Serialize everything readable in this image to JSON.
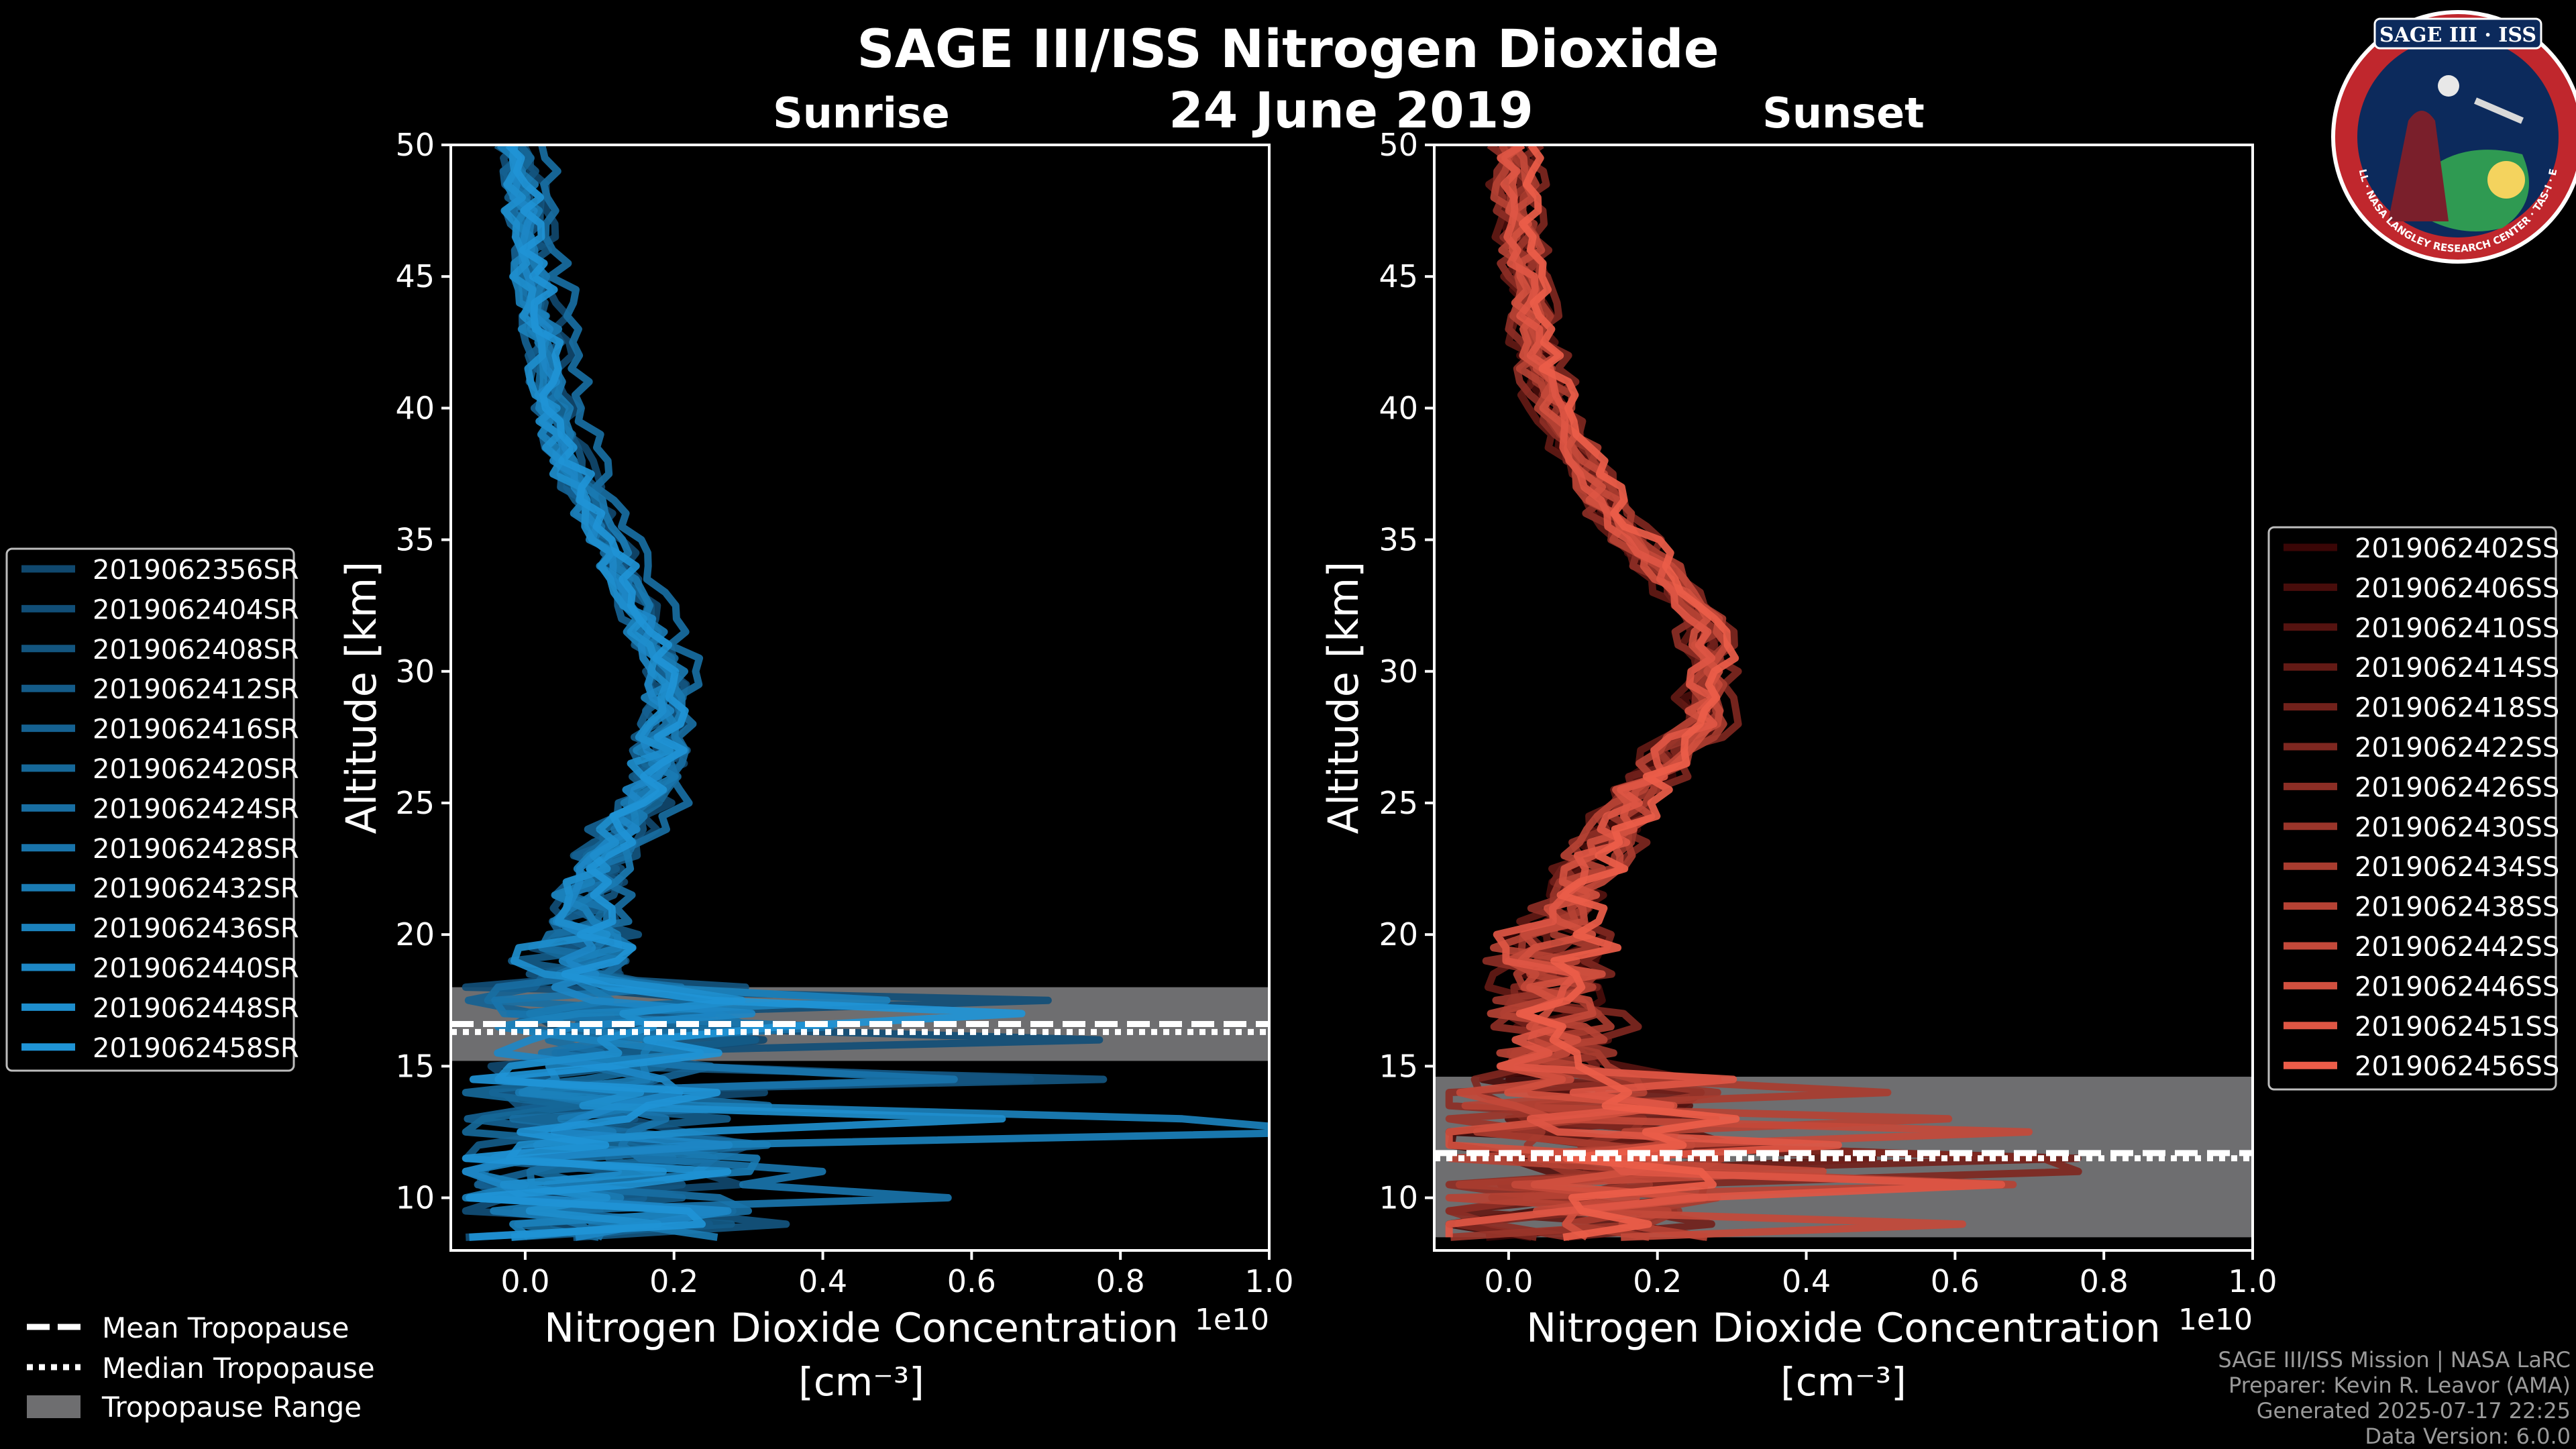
{
  "title": "SAGE III/ISS Nitrogen Dioxide",
  "date": "24 June 2019",
  "logo": {
    "top_text": "SAGE III · ISS",
    "ring_text": "BALL · NASA LANGLEY RESEARCH CENTER · TAS-I · ESA"
  },
  "footer": {
    "lines": [
      "SAGE III/ISS Mission | NASA LaRC",
      "Preparer: Kevin R. Leavor (AMA)",
      "Generated 2025-07-17 22:25",
      "Data Version: 6.0.0"
    ]
  },
  "tropopause_legend": {
    "mean": "Mean Tropopause",
    "median": "Median Tropopause",
    "range": "Tropopause Range"
  },
  "colors": {
    "sunrise": "#1f94d6",
    "sunset": "#ec5d49",
    "tropopause_range": "#6e6e70"
  },
  "chart_data": [
    {
      "type": "line",
      "panel": "Sunrise",
      "title": "Sunrise",
      "xlabel": "Nitrogen Dioxide Concentration",
      "xlabel_units": "[cm⁻³]",
      "ylabel": "Altitude [km]",
      "x_scale_label": "1e10",
      "xlim": [
        -0.1,
        1.0
      ],
      "ylim": [
        8,
        50
      ],
      "x_ticks": [
        "0.0",
        "0.2",
        "0.4",
        "0.6",
        "0.8",
        "1.0"
      ],
      "x_tick_values": [
        0.0,
        0.2,
        0.4,
        0.6,
        0.8,
        1.0
      ],
      "y_ticks": [
        "10",
        "15",
        "20",
        "25",
        "30",
        "35",
        "40",
        "45",
        "50"
      ],
      "y_tick_values": [
        10,
        15,
        20,
        25,
        30,
        35,
        40,
        45,
        50
      ],
      "tropopause": {
        "mean": 16.6,
        "median": 16.3,
        "range": [
          15.2,
          18.0
        ]
      },
      "profile_shape": {
        "altitude": [
          8.5,
          10,
          12,
          14,
          16,
          18,
          20,
          22,
          24,
          26,
          28,
          30,
          32,
          34,
          36,
          38,
          40,
          42,
          44,
          46,
          48,
          50
        ],
        "no2": [
          0.05,
          0.06,
          0.07,
          0.08,
          0.12,
          0.07,
          0.08,
          0.1,
          0.14,
          0.19,
          0.2,
          0.2,
          0.17,
          0.14,
          0.1,
          0.07,
          0.05,
          0.04,
          0.03,
          0.02,
          0.01,
          0.0
        ],
        "note": "approximate common profile (units 1e10 cm^-3); individual events scatter around it"
      },
      "legend_position": "left",
      "series": [
        {
          "name": "2019062356SR"
        },
        {
          "name": "2019062404SR"
        },
        {
          "name": "2019062408SR"
        },
        {
          "name": "2019062412SR"
        },
        {
          "name": "2019062416SR"
        },
        {
          "name": "2019062420SR"
        },
        {
          "name": "2019062424SR"
        },
        {
          "name": "2019062428SR"
        },
        {
          "name": "2019062432SR"
        },
        {
          "name": "2019062436SR"
        },
        {
          "name": "2019062440SR"
        },
        {
          "name": "2019062448SR"
        },
        {
          "name": "2019062458SR"
        }
      ]
    },
    {
      "type": "line",
      "panel": "Sunset",
      "title": "Sunset",
      "xlabel": "Nitrogen Dioxide Concentration",
      "xlabel_units": "[cm⁻³]",
      "ylabel": "Altitude [km]",
      "x_scale_label": "1e10",
      "xlim": [
        -0.1,
        1.0
      ],
      "ylim": [
        8,
        50
      ],
      "x_ticks": [
        "0.0",
        "0.2",
        "0.4",
        "0.6",
        "0.8",
        "1.0"
      ],
      "x_tick_values": [
        0.0,
        0.2,
        0.4,
        0.6,
        0.8,
        1.0
      ],
      "y_ticks": [
        "10",
        "15",
        "20",
        "25",
        "30",
        "35",
        "40",
        "45",
        "50"
      ],
      "y_tick_values": [
        10,
        15,
        20,
        25,
        30,
        35,
        40,
        45,
        50
      ],
      "tropopause": {
        "mean": 11.7,
        "median": 11.5,
        "range": [
          8.5,
          14.6
        ]
      },
      "profile_shape": {
        "altitude": [
          8.5,
          10,
          12,
          14,
          16,
          18,
          20,
          22,
          24,
          26,
          28,
          30,
          32,
          34,
          36,
          38,
          40,
          42,
          44,
          46,
          48,
          50
        ],
        "no2": [
          0.03,
          0.04,
          0.06,
          0.06,
          0.08,
          0.05,
          0.06,
          0.1,
          0.14,
          0.19,
          0.26,
          0.27,
          0.26,
          0.2,
          0.14,
          0.1,
          0.06,
          0.04,
          0.03,
          0.02,
          0.01,
          0.01
        ],
        "note": "approximate common profile (units 1e10 cm^-3); individual events scatter around it"
      },
      "legend_position": "right",
      "series": [
        {
          "name": "2019062402SS"
        },
        {
          "name": "2019062406SS"
        },
        {
          "name": "2019062410SS"
        },
        {
          "name": "2019062414SS"
        },
        {
          "name": "2019062418SS"
        },
        {
          "name": "2019062422SS"
        },
        {
          "name": "2019062426SS"
        },
        {
          "name": "2019062430SS"
        },
        {
          "name": "2019062434SS"
        },
        {
          "name": "2019062438SS"
        },
        {
          "name": "2019062442SS"
        },
        {
          "name": "2019062446SS"
        },
        {
          "name": "2019062451SS"
        },
        {
          "name": "2019062456SS"
        }
      ]
    }
  ]
}
